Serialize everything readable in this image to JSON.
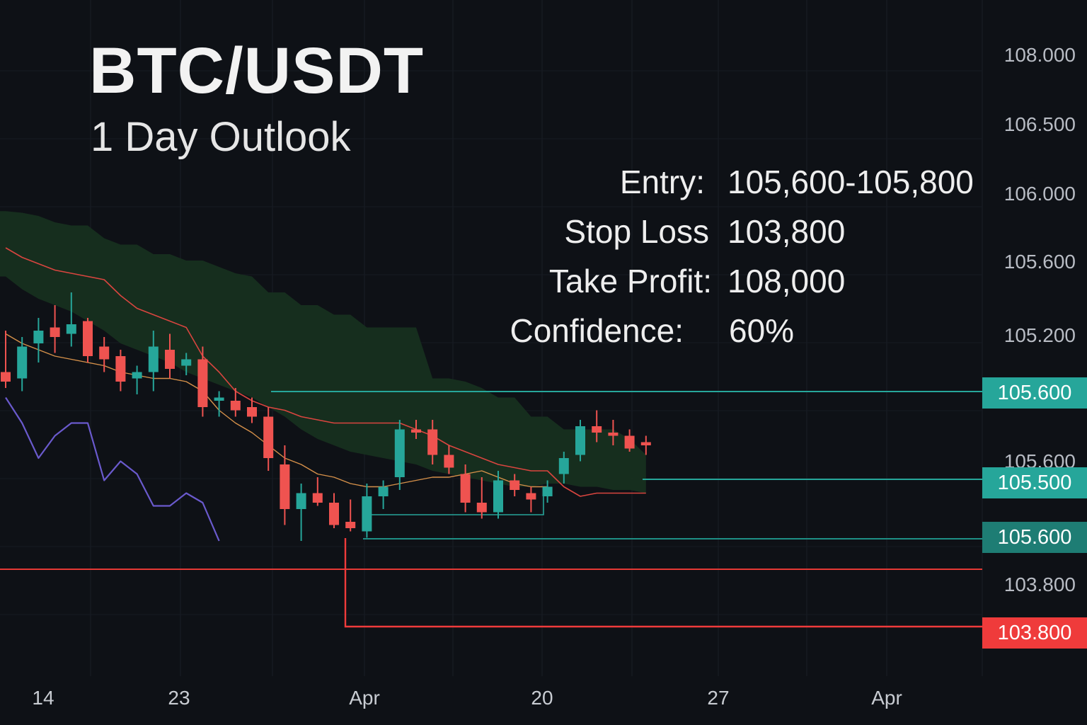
{
  "header": {
    "title": "BTC/USDT",
    "subtitle": "1 Day Outlook"
  },
  "trade_plan": [
    {
      "label": "Entry:",
      "value": "105,600-105,800"
    },
    {
      "label": "Stop Loss",
      "value": "103,800"
    },
    {
      "label": "Take Profit:",
      "value": "108,000"
    },
    {
      "label": "Confidence:",
      "value": "60%"
    }
  ],
  "colors": {
    "background": "#0e1116",
    "up": "#26a69a",
    "down": "#ef5350",
    "cloud": "#17301f",
    "purple": "#6a5acd",
    "orange": "#d6914a"
  },
  "chart_data": {
    "type": "candlestick",
    "title": "BTC/USDT 1 Day Outlook",
    "y_axis_labels": [
      "108.000",
      "106.500",
      "106.000",
      "105.600",
      "105.200",
      "105.600",
      "103.800"
    ],
    "x_axis_labels": [
      "14",
      "23",
      "Apr",
      "20",
      "27",
      "Apr"
    ],
    "price_tags": [
      {
        "label": "105.600",
        "color": "#26a69a",
        "style": "level"
      },
      {
        "label": "105.500",
        "color": "#26a69a",
        "style": "level"
      },
      {
        "label": "105.600",
        "color": "#1e7d74",
        "style": "level"
      },
      {
        "label": "103.800",
        "color": "#ef3b3b",
        "style": "level"
      }
    ],
    "candles": [
      {
        "o": 105.02,
        "h": 105.28,
        "l": 104.92,
        "c": 104.96
      },
      {
        "o": 104.98,
        "h": 105.24,
        "l": 104.9,
        "c": 105.18
      },
      {
        "o": 105.2,
        "h": 105.36,
        "l": 105.08,
        "c": 105.28
      },
      {
        "o": 105.3,
        "h": 105.44,
        "l": 105.14,
        "c": 105.24
      },
      {
        "o": 105.26,
        "h": 105.52,
        "l": 105.18,
        "c": 105.32
      },
      {
        "o": 105.34,
        "h": 105.36,
        "l": 105.08,
        "c": 105.12
      },
      {
        "o": 105.18,
        "h": 105.24,
        "l": 105.02,
        "c": 105.1
      },
      {
        "o": 105.12,
        "h": 105.16,
        "l": 104.9,
        "c": 104.96
      },
      {
        "o": 104.98,
        "h": 105.06,
        "l": 104.88,
        "c": 105.02
      },
      {
        "o": 105.02,
        "h": 105.28,
        "l": 104.9,
        "c": 105.18
      },
      {
        "o": 105.16,
        "h": 105.26,
        "l": 104.98,
        "c": 105.04
      },
      {
        "o": 105.06,
        "h": 105.14,
        "l": 105.0,
        "c": 105.1
      },
      {
        "o": 105.1,
        "h": 105.18,
        "l": 104.74,
        "c": 104.8
      },
      {
        "o": 104.84,
        "h": 104.9,
        "l": 104.74,
        "c": 104.86
      },
      {
        "o": 104.84,
        "h": 104.92,
        "l": 104.74,
        "c": 104.78
      },
      {
        "o": 104.8,
        "h": 104.86,
        "l": 104.7,
        "c": 104.74
      },
      {
        "o": 104.74,
        "h": 104.8,
        "l": 104.4,
        "c": 104.48
      },
      {
        "o": 104.44,
        "h": 104.56,
        "l": 104.06,
        "c": 104.16
      },
      {
        "o": 104.16,
        "h": 104.32,
        "l": 103.96,
        "c": 104.26
      },
      {
        "o": 104.26,
        "h": 104.36,
        "l": 104.18,
        "c": 104.2
      },
      {
        "o": 104.2,
        "h": 104.26,
        "l": 104.04,
        "c": 104.06
      },
      {
        "o": 104.08,
        "h": 104.22,
        "l": 104.02,
        "c": 104.04
      },
      {
        "o": 104.02,
        "h": 104.32,
        "l": 103.98,
        "c": 104.24
      },
      {
        "o": 104.24,
        "h": 104.34,
        "l": 104.16,
        "c": 104.3
      },
      {
        "o": 104.36,
        "h": 104.72,
        "l": 104.28,
        "c": 104.66
      },
      {
        "o": 104.66,
        "h": 104.72,
        "l": 104.6,
        "c": 104.64
      },
      {
        "o": 104.66,
        "h": 104.72,
        "l": 104.44,
        "c": 104.5
      },
      {
        "o": 104.5,
        "h": 104.56,
        "l": 104.38,
        "c": 104.42
      },
      {
        "o": 104.38,
        "h": 104.44,
        "l": 104.14,
        "c": 104.2
      },
      {
        "o": 104.2,
        "h": 104.36,
        "l": 104.1,
        "c": 104.14
      },
      {
        "o": 104.14,
        "h": 104.4,
        "l": 104.1,
        "c": 104.34
      },
      {
        "o": 104.34,
        "h": 104.38,
        "l": 104.24,
        "c": 104.28
      },
      {
        "o": 104.26,
        "h": 104.3,
        "l": 104.14,
        "c": 104.22
      },
      {
        "o": 104.24,
        "h": 104.34,
        "l": 104.2,
        "c": 104.3
      },
      {
        "o": 104.38,
        "h": 104.52,
        "l": 104.32,
        "c": 104.48
      },
      {
        "o": 104.5,
        "h": 104.72,
        "l": 104.46,
        "c": 104.68
      },
      {
        "o": 104.68,
        "h": 104.78,
        "l": 104.58,
        "c": 104.64
      },
      {
        "o": 104.64,
        "h": 104.72,
        "l": 104.56,
        "c": 104.62
      },
      {
        "o": 104.62,
        "h": 104.66,
        "l": 104.52,
        "c": 104.54
      },
      {
        "o": 104.58,
        "h": 104.62,
        "l": 104.5,
        "c": 104.56
      }
    ],
    "cloud_top": [
      106.03,
      106.02,
      106.0,
      105.96,
      105.94,
      105.94,
      105.86,
      105.82,
      105.82,
      105.76,
      105.76,
      105.72,
      105.72,
      105.68,
      105.64,
      105.62,
      105.52,
      105.52,
      105.44,
      105.44,
      105.38,
      105.38,
      105.3,
      105.3,
      105.3,
      105.3,
      104.98,
      104.98,
      104.96,
      104.92,
      104.86,
      104.86,
      104.74,
      104.74,
      104.66,
      104.66,
      104.66,
      104.66,
      104.6,
      104.5
    ],
    "cloud_bottom": [
      105.62,
      105.54,
      105.48,
      105.44,
      105.4,
      105.34,
      105.28,
      105.2,
      105.16,
      105.12,
      105.08,
      105.02,
      104.98,
      104.94,
      104.9,
      104.86,
      104.8,
      104.74,
      104.66,
      104.6,
      104.56,
      104.52,
      104.5,
      104.48,
      104.46,
      104.44,
      104.4,
      104.38,
      104.36,
      104.34,
      104.32,
      104.3,
      104.3,
      104.32,
      104.32,
      104.3,
      104.3,
      104.28,
      104.28,
      104.26
    ],
    "red_line": [
      105.8,
      105.74,
      105.7,
      105.66,
      105.64,
      105.62,
      105.6,
      105.5,
      105.42,
      105.38,
      105.34,
      105.3,
      105.12,
      105.02,
      104.9,
      104.84,
      104.8,
      104.78,
      104.74,
      104.72,
      104.7,
      104.7,
      104.7,
      104.7,
      104.7,
      104.66,
      104.62,
      104.56,
      104.52,
      104.48,
      104.44,
      104.42,
      104.4,
      104.4,
      104.3,
      104.24,
      104.26,
      104.26,
      104.26,
      104.26
    ],
    "orange_line": [
      105.26,
      105.2,
      105.16,
      105.12,
      105.1,
      105.08,
      105.06,
      105.02,
      105.0,
      104.98,
      104.98,
      104.96,
      104.9,
      104.78,
      104.7,
      104.64,
      104.56,
      104.48,
      104.44,
      104.38,
      104.36,
      104.32,
      104.3,
      104.3,
      104.32,
      104.34,
      104.36,
      104.36,
      104.38,
      104.4,
      104.36,
      104.32,
      104.3,
      104.3
    ],
    "lagging_line": [
      104.86,
      104.7,
      104.48,
      104.62,
      104.7,
      104.7,
      104.34,
      104.46,
      104.38,
      104.18,
      104.18,
      104.26,
      104.2,
      103.96
    ]
  }
}
